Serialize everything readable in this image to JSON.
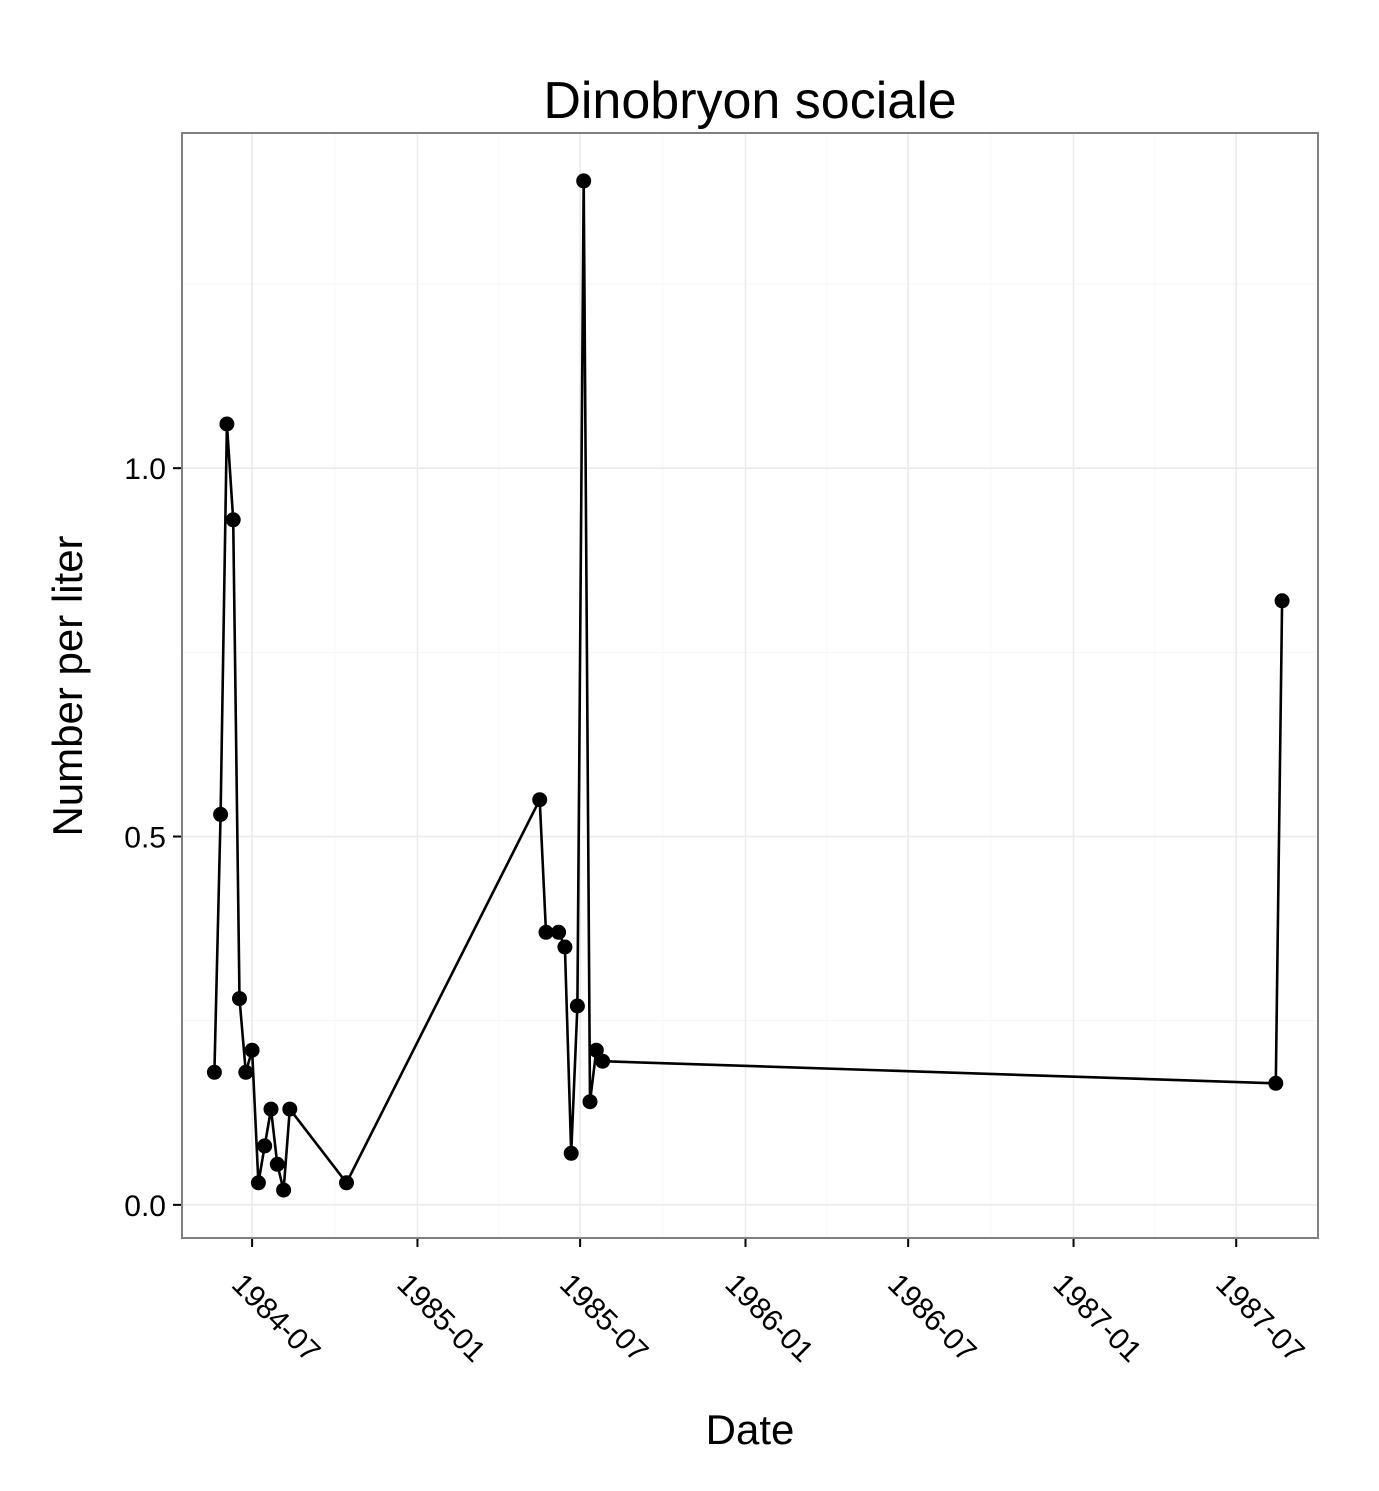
{
  "chart_data": {
    "type": "line",
    "title": "Dinobryon sociale",
    "xlabel": "Date",
    "ylabel": "Number per liter",
    "x_ticks": [
      "1984-07",
      "1985-01",
      "1985-07",
      "1986-01",
      "1986-07",
      "1987-01",
      "1987-07"
    ],
    "y_ticks": [
      "0.0",
      "0.5",
      "1.0"
    ],
    "xlim": [
      "1984-04-14",
      "1987-09-30"
    ],
    "ylim": [
      -0.045,
      1.455
    ],
    "grid": true,
    "markers": true,
    "line_color": "#000000",
    "panel_border_color": "#7f7f7f",
    "series": [
      {
        "points": [
          {
            "x": "1984-05-20",
            "y": 0.18
          },
          {
            "x": "1984-05-27",
            "y": 0.53
          },
          {
            "x": "1984-06-03",
            "y": 1.06
          },
          {
            "x": "1984-06-10",
            "y": 0.93
          },
          {
            "x": "1984-06-17",
            "y": 0.28
          },
          {
            "x": "1984-06-24",
            "y": 0.18
          },
          {
            "x": "1984-07-01",
            "y": 0.21
          },
          {
            "x": "1984-07-08",
            "y": 0.03
          },
          {
            "x": "1984-07-15",
            "y": 0.08
          },
          {
            "x": "1984-07-22",
            "y": 0.13
          },
          {
            "x": "1984-07-29",
            "y": 0.055
          },
          {
            "x": "1984-08-05",
            "y": 0.02
          },
          {
            "x": "1984-08-12",
            "y": 0.13
          },
          {
            "x": "1984-10-14",
            "y": 0.03
          },
          {
            "x": "1985-05-17",
            "y": 0.55
          },
          {
            "x": "1985-05-24",
            "y": 0.37
          },
          {
            "x": "1985-06-07",
            "y": 0.37
          },
          {
            "x": "1985-06-14",
            "y": 0.35
          },
          {
            "x": "1985-06-21",
            "y": 0.07
          },
          {
            "x": "1985-06-28",
            "y": 0.27
          },
          {
            "x": "1985-07-05",
            "y": 1.39
          },
          {
            "x": "1985-07-12",
            "y": 0.14
          },
          {
            "x": "1985-07-19",
            "y": 0.21
          },
          {
            "x": "1985-07-26",
            "y": 0.195
          },
          {
            "x": "1987-08-14",
            "y": 0.165
          },
          {
            "x": "1987-08-21",
            "y": 0.82
          }
        ]
      }
    ]
  }
}
